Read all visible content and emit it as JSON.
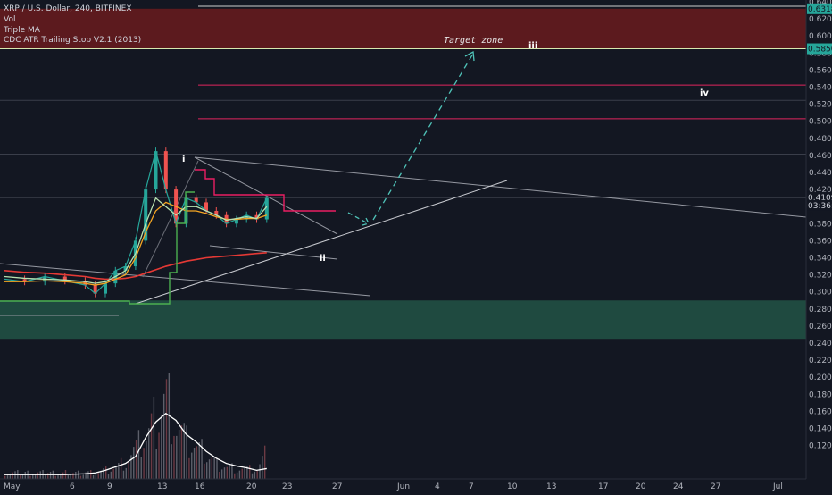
{
  "legend": {
    "symbol_line": "XRP / U.S. Dollar, 240, BITFINEX",
    "vol": "Vol",
    "triple_ma": "Triple MA",
    "atr": "CDC ATR Trailing Stop V2.1 (2013)"
  },
  "price_scale": {
    "ticks": [
      "0.64000",
      "0.62000",
      "0.60000",
      "0.58000",
      "0.56000",
      "0.54000",
      "0.52000",
      "0.50000",
      "0.48000",
      "0.46000",
      "0.44000",
      "0.42000",
      "0.40000",
      "0.38000",
      "0.36000",
      "0.34000",
      "0.32000",
      "0.30000",
      "0.28000",
      "0.26000",
      "0.24000",
      "0.22000",
      "0.20000",
      "0.18000",
      "0.16000",
      "0.14000",
      "0.12000"
    ],
    "badges": [
      {
        "text": "0.63183",
        "price": 0.63183,
        "bg": "#26a69a",
        "color": "#131722"
      },
      {
        "text": "0.58500",
        "price": 0.585,
        "bg": "#26a69a",
        "color": "#131722"
      },
      {
        "text": "0.41091",
        "price": 0.41091,
        "bg": "#131722",
        "color": "#d1d4dc"
      },
      {
        "text": "03:36:43",
        "price": 0.4015,
        "bg": "#131722",
        "color": "#d1d4dc"
      }
    ]
  },
  "time_axis": [
    "May",
    "6",
    "9",
    "13",
    "16",
    "20",
    "23",
    "27",
    "Jun",
    "4",
    "7",
    "10",
    "13",
    "17",
    "20",
    "24",
    "27",
    "Jul"
  ],
  "annotations": {
    "target_zone": "Target zone",
    "waves": [
      "i",
      "ii",
      "iii",
      "iv"
    ]
  },
  "colors": {
    "resistance_zone": "#5c1a1e",
    "support_zone": "#1f4a40",
    "ma_red": "#e53935",
    "ma_orange": "#f5a623",
    "ma_green": "#b8e1b0",
    "atr_green": "#4caf50",
    "atr_pink": "#e91e63",
    "target_arrow": "#4fc3b8",
    "volume_bar": "#5d606b",
    "volume_ma": "#ffffff"
  },
  "chart_data": {
    "type": "line",
    "title": "XRP / U.S. Dollar, 240, BITFINEX",
    "y_range": [
      0.24,
      0.64
    ],
    "resistance_zone": [
      0.585,
      0.63183
    ],
    "support_zone": [
      0.245,
      0.29
    ],
    "levels": [
      0.6483,
      0.585,
      0.5425,
      0.5245,
      0.503,
      0.4615,
      0.41091
    ],
    "x": [
      "May 1",
      "May 3",
      "May 5",
      "May 7",
      "May 9",
      "May 10",
      "May 11",
      "May 12",
      "May 13",
      "May 14",
      "May 15",
      "May 16",
      "May 17",
      "May 18",
      "May 19",
      "May 20",
      "May 21",
      "May 22",
      "May 23",
      "May 24",
      "May 25",
      "May 26",
      "May 27"
    ],
    "series": [
      {
        "name": "XRP / U.S. Dollar",
        "values": [
          0.315,
          0.312,
          0.318,
          0.313,
          0.308,
          0.298,
          0.31,
          0.325,
          0.33,
          0.36,
          0.42,
          0.465,
          0.42,
          0.38,
          0.41,
          0.405,
          0.395,
          0.39,
          0.38,
          0.385,
          0.39,
          0.385,
          0.41
        ]
      },
      {
        "name": "Triple MA",
        "values": [
          0.325,
          0.323,
          0.322,
          0.32,
          0.318,
          0.316,
          0.315,
          0.315,
          0.316,
          0.318,
          0.322,
          0.326,
          0.33,
          0.333,
          0.336,
          0.338,
          0.34,
          0.341,
          0.342,
          0.343,
          0.344,
          0.345,
          0.346
        ]
      }
    ],
    "volume": {
      "values": [
        0.11,
        0.11,
        0.11,
        0.11,
        0.11,
        0.11,
        0.115,
        0.12,
        0.13,
        0.15,
        0.17,
        0.2,
        0.24,
        0.19,
        0.16,
        0.15,
        0.14,
        0.125,
        0.12,
        0.118,
        0.116,
        0.115,
        0.145
      ],
      "ma": [
        0.105,
        0.105,
        0.105,
        0.105,
        0.106,
        0.107,
        0.11,
        0.114,
        0.118,
        0.126,
        0.148,
        0.166,
        0.176,
        0.168,
        0.152,
        0.143,
        0.132,
        0.124,
        0.118,
        0.115,
        0.113,
        0.11,
        0.112
      ]
    }
  }
}
